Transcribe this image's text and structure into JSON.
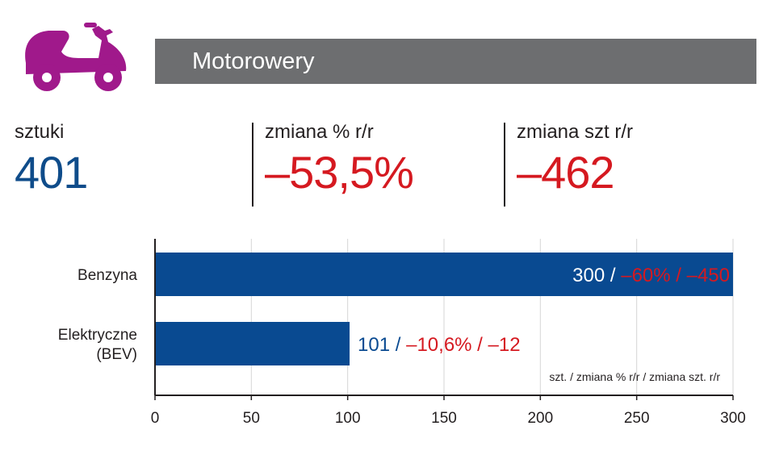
{
  "header": {
    "title": "Motorowery",
    "icon": "scooter-icon"
  },
  "stats": [
    {
      "label": "sztuki",
      "value": "401",
      "color": "#0f4c8a"
    },
    {
      "label": "zmiana % r/r",
      "value": "–53,5%",
      "color": "#d51920"
    },
    {
      "label": "zmiana szt r/r",
      "value": "–462",
      "color": "#d51920"
    }
  ],
  "colors": {
    "bar": "#094a91",
    "accent_red": "#d51920",
    "icon": "#a0198b",
    "header_bg": "#6d6e70"
  },
  "chart_data": {
    "type": "bar",
    "orientation": "horizontal",
    "categories": [
      "Benzyna",
      "Elektryczne\n(BEV)"
    ],
    "values": [
      300,
      101
    ],
    "bar_labels": [
      {
        "count": "300 /",
        "change": " –60% / –450"
      },
      {
        "count": "101 /",
        "change": " –10,6% / –12"
      }
    ],
    "xlim": [
      0,
      300
    ],
    "xticks": [
      0,
      50,
      100,
      150,
      200,
      250,
      300
    ],
    "grid": true,
    "note": "szt. / zmiana % r/r / zmiana szt. r/r"
  }
}
